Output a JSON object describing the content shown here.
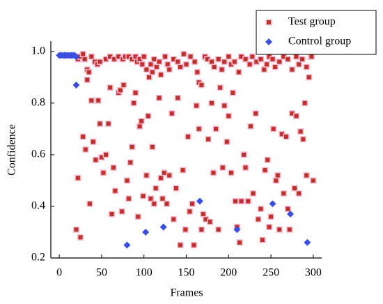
{
  "chart_data": {
    "type": "scatter",
    "xlabel": "Frames",
    "ylabel": "Confidence",
    "xlim": [
      -10,
      310
    ],
    "ylim": [
      0.2,
      1.04
    ],
    "xticks": [
      0,
      50,
      100,
      150,
      200,
      250,
      300
    ],
    "yticks": [
      0.2,
      0.4,
      0.6,
      0.8,
      {
        "value": 1.0,
        "label": "1.0"
      }
    ],
    "legend": "upper right",
    "series": [
      {
        "name": "Test group",
        "color": "#c0302a",
        "marker": "square",
        "x": [
          22,
          25,
          28,
          30,
          33,
          35,
          38,
          42,
          45,
          48,
          55,
          60,
          65,
          70,
          75,
          78,
          82,
          86,
          90,
          92,
          95,
          98,
          100,
          103,
          106,
          108,
          110,
          112,
          115,
          118,
          120,
          125,
          128,
          130,
          135,
          140,
          143,
          147,
          150,
          155,
          160,
          163,
          165,
          168,
          172,
          175,
          180,
          183,
          188,
          192,
          195,
          200,
          203,
          207,
          212,
          215,
          220,
          225,
          228,
          233,
          238,
          242,
          245,
          248,
          252,
          255,
          260,
          265,
          270,
          275,
          280,
          283,
          287,
          292,
          297,
          20,
          22,
          25,
          28,
          31,
          33,
          36,
          38,
          40,
          43,
          46,
          48,
          50,
          52,
          55,
          58,
          60,
          62,
          64,
          66,
          70,
          72,
          74,
          76,
          80,
          82,
          84,
          86,
          88,
          90,
          93,
          95,
          97,
          99,
          103,
          105,
          108,
          110,
          112,
          114,
          118,
          120,
          122,
          124,
          127,
          130,
          133,
          135,
          138,
          140,
          143,
          146,
          149,
          152,
          154,
          157,
          159,
          162,
          165,
          168,
          170,
          173,
          176,
          178,
          180,
          182,
          185,
          188,
          190,
          193,
          195,
          198,
          200,
          203,
          205,
          208,
          210,
          213,
          215,
          218,
          220,
          223,
          226,
          229,
          232,
          235,
          238,
          240,
          243,
          246,
          248,
          250,
          253,
          256,
          258,
          260,
          263,
          265,
          268,
          270,
          272,
          275,
          278,
          280,
          283,
          285,
          288,
          290,
          292,
          295,
          298,
          300
        ],
        "values": [
          0.97,
          0.98,
          0.99,
          0.97,
          0.93,
          0.92,
          0.98,
          0.96,
          0.95,
          0.96,
          0.97,
          0.98,
          0.97,
          0.98,
          0.97,
          0.98,
          0.98,
          0.97,
          0.98,
          0.96,
          0.97,
          0.95,
          0.98,
          0.93,
          0.9,
          0.95,
          0.92,
          0.97,
          0.94,
          0.96,
          0.91,
          0.98,
          0.95,
          0.93,
          0.97,
          0.96,
          0.94,
          0.99,
          0.95,
          0.98,
          0.96,
          0.92,
          0.88,
          0.87,
          0.98,
          0.97,
          0.96,
          0.94,
          0.97,
          0.93,
          0.96,
          0.98,
          0.95,
          0.96,
          0.92,
          0.98,
          0.97,
          0.95,
          0.98,
          0.96,
          0.97,
          0.93,
          0.95,
          0.98,
          0.97,
          0.94,
          0.96,
          0.98,
          0.97,
          0.93,
          0.98,
          0.95,
          0.97,
          0.94,
          0.98,
          0.31,
          0.51,
          0.28,
          0.67,
          0.62,
          0.89,
          0.41,
          0.81,
          0.65,
          0.58,
          0.81,
          0.72,
          0.59,
          0.53,
          0.6,
          0.72,
          0.86,
          0.37,
          0.55,
          0.46,
          0.84,
          0.85,
          0.38,
          0.87,
          0.5,
          0.43,
          0.57,
          0.63,
          0.8,
          0.84,
          0.36,
          0.71,
          0.73,
          0.44,
          0.52,
          0.75,
          0.43,
          0.63,
          0.41,
          0.47,
          0.82,
          0.51,
          0.43,
          0.53,
          0.41,
          0.52,
          0.76,
          0.35,
          0.47,
          0.82,
          0.25,
          0.54,
          0.31,
          0.67,
          0.38,
          0.41,
          0.25,
          0.79,
          0.7,
          0.31,
          0.37,
          0.35,
          0.66,
          0.34,
          0.8,
          0.53,
          0.7,
          0.31,
          0.86,
          0.55,
          0.79,
          0.65,
          0.75,
          0.53,
          0.84,
          0.42,
          0.32,
          0.26,
          0.42,
          0.6,
          0.55,
          0.42,
          0.71,
          0.45,
          0.76,
          0.35,
          0.39,
          0.27,
          0.54,
          0.58,
          0.32,
          0.36,
          0.7,
          0.5,
          0.52,
          0.31,
          0.68,
          0.45,
          0.67,
          0.39,
          0.31,
          0.76,
          0.47,
          0.75,
          0.45,
          0.69,
          0.66,
          0.8,
          0.52,
          0.9,
          0.98,
          0.5
        ]
      },
      {
        "name": "Control group",
        "color": "#3a4ee0",
        "marker": "diamond",
        "x": [
          0,
          2,
          4,
          6,
          8,
          10,
          12,
          14,
          16,
          18,
          20,
          20,
          80,
          102,
          123,
          166,
          210,
          252,
          273,
          293
        ],
        "values": [
          0.985,
          0.985,
          0.985,
          0.985,
          0.985,
          0.985,
          0.985,
          0.985,
          0.985,
          0.985,
          0.98,
          0.87,
          0.25,
          0.3,
          0.32,
          0.42,
          0.31,
          0.41,
          0.37,
          0.26
        ]
      }
    ]
  }
}
